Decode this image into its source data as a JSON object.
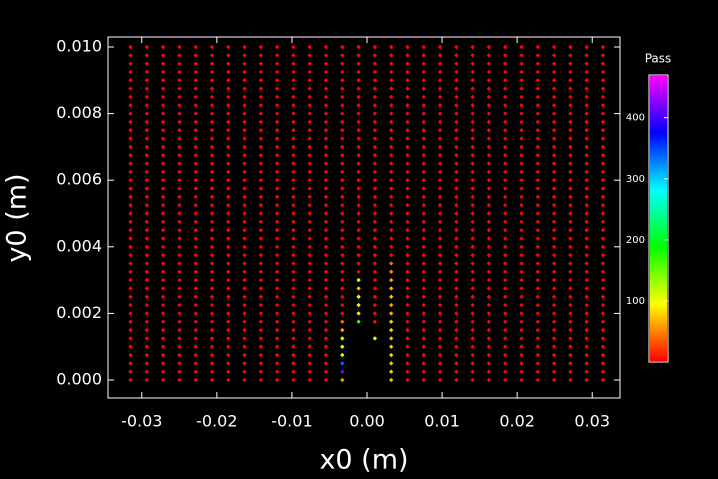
{
  "chart_data": {
    "type": "scatter",
    "x_label": "x0  (m)",
    "y_label": "y0  (m)",
    "colorbar_label": "Pass",
    "x": [
      -0.0315,
      -0.02933,
      -0.02716,
      -0.02499,
      -0.02282,
      -0.02065,
      -0.01848,
      -0.01631,
      -0.01414,
      -0.01197,
      -0.0098,
      -0.00763,
      -0.00546,
      -0.00329,
      -0.00112,
      0.00105,
      0.00322,
      0.00539,
      0.00756,
      0.00973,
      0.0119,
      0.01407,
      0.01624,
      0.01841,
      0.02058,
      0.02275,
      0.02492,
      0.02709,
      0.02926,
      0.03143
    ],
    "y": [
      0,
      0.00025,
      0.0005,
      0.00075,
      0.001,
      0.00125,
      0.0015,
      0.00175,
      0.002,
      0.00225,
      0.0025,
      0.00275,
      0.003,
      0.00325,
      0.0035,
      0.00375,
      0.004,
      0.00425,
      0.0045,
      0.00475,
      0.005,
      0.00525,
      0.0055,
      0.00575,
      0.006,
      0.00625,
      0.0065,
      0.00675,
      0.007,
      0.00725,
      0.0075,
      0.00775,
      0.008,
      0.00825,
      0.0085,
      0.00875,
      0.009,
      0.00925,
      0.0095,
      0.00975,
      0.01
    ],
    "values": [
      [
        1,
        1,
        1,
        1,
        1,
        1,
        1,
        1,
        1,
        1,
        1,
        1,
        1,
        60,
        null,
        null,
        70,
        1,
        1,
        1,
        1,
        1,
        1,
        1,
        1,
        1,
        1,
        1,
        1,
        1
      ],
      [
        1,
        1,
        1,
        1,
        1,
        1,
        1,
        1,
        1,
        1,
        1,
        1,
        1,
        420,
        null,
        null,
        75,
        1,
        1,
        1,
        1,
        1,
        1,
        1,
        1,
        1,
        1,
        1,
        1,
        1
      ],
      [
        1,
        1,
        1,
        1,
        1,
        1,
        1,
        1,
        1,
        1,
        1,
        1,
        1,
        340,
        null,
        null,
        70,
        1,
        1,
        1,
        1,
        1,
        1,
        1,
        1,
        1,
        1,
        1,
        1,
        1
      ],
      [
        1,
        1,
        1,
        1,
        1,
        1,
        1,
        1,
        1,
        1,
        1,
        1,
        1,
        90,
        null,
        null,
        80,
        1,
        1,
        1,
        1,
        1,
        1,
        1,
        1,
        1,
        1,
        1,
        1,
        1
      ],
      [
        1,
        1,
        1,
        1,
        1,
        1,
        1,
        1,
        1,
        1,
        1,
        1,
        1,
        95,
        null,
        null,
        75,
        1,
        1,
        1,
        1,
        1,
        1,
        1,
        1,
        1,
        1,
        1,
        1,
        1
      ],
      [
        1,
        1,
        1,
        1,
        1,
        1,
        1,
        1,
        1,
        1,
        1,
        1,
        1,
        100,
        null,
        100,
        70,
        1,
        1,
        1,
        1,
        1,
        1,
        1,
        1,
        1,
        1,
        1,
        1,
        1
      ],
      [
        1,
        1,
        1,
        1,
        1,
        1,
        1,
        1,
        1,
        1,
        1,
        1,
        1,
        60,
        null,
        null,
        80,
        1,
        1,
        1,
        1,
        1,
        1,
        1,
        1,
        1,
        1,
        1,
        1,
        1
      ],
      [
        1,
        1,
        1,
        1,
        1,
        1,
        1,
        1,
        1,
        1,
        1,
        1,
        1,
        40,
        170,
        5,
        75,
        1,
        1,
        1,
        1,
        1,
        1,
        1,
        1,
        1,
        1,
        1,
        1,
        1
      ],
      [
        1,
        1,
        1,
        1,
        1,
        1,
        1,
        1,
        1,
        1,
        1,
        1,
        1,
        1,
        90,
        1,
        65,
        1,
        1,
        1,
        1,
        1,
        1,
        1,
        1,
        1,
        1,
        1,
        1,
        1
      ],
      [
        1,
        1,
        1,
        1,
        1,
        1,
        1,
        1,
        1,
        1,
        1,
        1,
        1,
        1,
        100,
        1,
        60,
        1,
        1,
        1,
        1,
        1,
        1,
        1,
        1,
        1,
        1,
        1,
        1,
        1
      ],
      [
        1,
        1,
        1,
        1,
        1,
        1,
        1,
        1,
        1,
        1,
        1,
        1,
        1,
        1,
        95,
        1,
        70,
        1,
        1,
        1,
        1,
        1,
        1,
        1,
        1,
        1,
        1,
        1,
        1,
        1
      ],
      [
        1,
        1,
        1,
        1,
        1,
        1,
        1,
        1,
        1,
        1,
        1,
        1,
        1,
        1,
        70,
        1,
        65,
        1,
        1,
        1,
        1,
        1,
        1,
        1,
        1,
        1,
        1,
        1,
        1,
        1
      ],
      [
        1,
        1,
        1,
        1,
        1,
        1,
        1,
        1,
        1,
        1,
        1,
        1,
        1,
        1,
        90,
        1,
        60,
        1,
        1,
        1,
        1,
        1,
        1,
        1,
        1,
        1,
        1,
        1,
        1,
        1
      ],
      [
        1,
        1,
        1,
        1,
        1,
        1,
        1,
        1,
        1,
        1,
        1,
        1,
        1,
        1,
        1,
        1,
        50,
        1,
        1,
        1,
        1,
        1,
        1,
        1,
        1,
        1,
        1,
        1,
        1,
        1
      ],
      [
        1,
        1,
        1,
        1,
        1,
        1,
        1,
        1,
        1,
        1,
        1,
        1,
        1,
        1,
        1,
        1,
        40,
        1,
        1,
        1,
        1,
        1,
        1,
        1,
        1,
        1,
        1,
        1,
        1,
        1
      ],
      [
        1,
        1,
        1,
        1,
        1,
        1,
        1,
        1,
        1,
        1,
        1,
        1,
        1,
        1,
        1,
        1,
        1,
        1,
        1,
        1,
        1,
        1,
        1,
        1,
        1,
        1,
        1,
        1,
        1,
        1
      ],
      [
        1,
        1,
        1,
        1,
        1,
        1,
        1,
        1,
        1,
        1,
        1,
        1,
        1,
        1,
        1,
        1,
        1,
        1,
        1,
        1,
        1,
        1,
        1,
        1,
        1,
        1,
        1,
        1,
        1,
        1
      ],
      [
        1,
        1,
        1,
        1,
        1,
        1,
        1,
        1,
        1,
        1,
        1,
        1,
        1,
        1,
        1,
        1,
        1,
        1,
        1,
        1,
        1,
        1,
        1,
        1,
        1,
        1,
        1,
        1,
        1,
        1
      ],
      [
        1,
        1,
        1,
        1,
        1,
        1,
        1,
        1,
        1,
        1,
        1,
        1,
        1,
        1,
        1,
        1,
        1,
        1,
        1,
        1,
        1,
        1,
        1,
        1,
        1,
        1,
        1,
        1,
        1,
        1
      ],
      [
        1,
        1,
        1,
        1,
        1,
        1,
        1,
        1,
        1,
        1,
        1,
        1,
        1,
        1,
        1,
        1,
        1,
        1,
        1,
        1,
        1,
        1,
        1,
        1,
        1,
        1,
        1,
        1,
        1,
        1
      ],
      [
        1,
        1,
        1,
        1,
        1,
        1,
        1,
        1,
        1,
        1,
        1,
        1,
        1,
        1,
        1,
        1,
        1,
        1,
        1,
        1,
        1,
        1,
        1,
        1,
        1,
        1,
        1,
        1,
        1,
        1
      ],
      [
        1,
        1,
        1,
        1,
        1,
        1,
        1,
        1,
        1,
        1,
        1,
        1,
        1,
        1,
        1,
        1,
        1,
        1,
        1,
        1,
        1,
        1,
        1,
        1,
        1,
        1,
        1,
        1,
        1,
        1
      ],
      [
        1,
        1,
        1,
        1,
        1,
        1,
        1,
        1,
        1,
        1,
        1,
        1,
        1,
        1,
        1,
        1,
        1,
        1,
        1,
        1,
        1,
        1,
        1,
        1,
        1,
        1,
        1,
        1,
        1,
        1
      ],
      [
        1,
        1,
        1,
        1,
        1,
        1,
        1,
        1,
        1,
        1,
        1,
        1,
        1,
        1,
        1,
        1,
        1,
        1,
        1,
        1,
        1,
        1,
        1,
        1,
        1,
        1,
        1,
        1,
        1,
        1
      ],
      [
        1,
        1,
        1,
        1,
        1,
        1,
        1,
        1,
        1,
        1,
        1,
        1,
        1,
        1,
        1,
        1,
        1,
        1,
        1,
        1,
        1,
        1,
        1,
        1,
        1,
        1,
        1,
        1,
        1,
        1
      ],
      [
        1,
        1,
        1,
        1,
        1,
        1,
        1,
        1,
        1,
        1,
        1,
        1,
        1,
        1,
        1,
        1,
        1,
        1,
        1,
        1,
        1,
        1,
        1,
        1,
        1,
        1,
        1,
        1,
        1,
        1
      ],
      [
        1,
        1,
        1,
        1,
        1,
        1,
        1,
        1,
        1,
        1,
        1,
        1,
        1,
        1,
        1,
        1,
        1,
        1,
        1,
        1,
        1,
        1,
        1,
        1,
        1,
        1,
        1,
        1,
        1,
        1
      ],
      [
        1,
        1,
        1,
        1,
        1,
        1,
        1,
        1,
        1,
        1,
        1,
        1,
        1,
        1,
        1,
        1,
        1,
        1,
        1,
        1,
        1,
        1,
        1,
        1,
        1,
        1,
        1,
        1,
        1,
        1
      ],
      [
        1,
        1,
        1,
        1,
        1,
        1,
        1,
        1,
        1,
        1,
        1,
        1,
        1,
        1,
        1,
        1,
        1,
        1,
        1,
        1,
        1,
        1,
        1,
        1,
        1,
        1,
        1,
        1,
        1,
        1
      ],
      [
        1,
        1,
        1,
        1,
        1,
        1,
        1,
        1,
        1,
        1,
        1,
        1,
        1,
        1,
        1,
        1,
        1,
        1,
        1,
        1,
        1,
        1,
        1,
        1,
        1,
        1,
        1,
        1,
        1,
        1
      ],
      [
        1,
        1,
        1,
        1,
        1,
        1,
        1,
        1,
        1,
        1,
        1,
        1,
        1,
        1,
        1,
        1,
        1,
        1,
        1,
        1,
        1,
        1,
        1,
        1,
        1,
        1,
        1,
        1,
        1,
        1
      ],
      [
        1,
        1,
        1,
        1,
        1,
        1,
        1,
        1,
        1,
        1,
        1,
        1,
        1,
        1,
        1,
        1,
        1,
        1,
        1,
        1,
        1,
        1,
        1,
        1,
        1,
        1,
        1,
        1,
        1,
        1
      ],
      [
        1,
        1,
        1,
        1,
        1,
        1,
        1,
        1,
        1,
        1,
        1,
        1,
        1,
        1,
        1,
        1,
        1,
        1,
        1,
        1,
        1,
        1,
        1,
        1,
        1,
        1,
        1,
        1,
        1,
        1
      ],
      [
        1,
        1,
        1,
        1,
        1,
        1,
        1,
        1,
        1,
        1,
        1,
        1,
        1,
        1,
        1,
        1,
        1,
        1,
        1,
        1,
        1,
        1,
        1,
        1,
        1,
        1,
        1,
        1,
        1,
        1
      ],
      [
        1,
        1,
        1,
        1,
        1,
        1,
        1,
        1,
        1,
        1,
        1,
        1,
        1,
        1,
        1,
        1,
        1,
        1,
        1,
        1,
        1,
        1,
        1,
        1,
        1,
        1,
        1,
        1,
        1,
        1
      ],
      [
        1,
        1,
        1,
        1,
        1,
        1,
        1,
        1,
        1,
        1,
        1,
        1,
        1,
        1,
        1,
        1,
        1,
        1,
        1,
        1,
        1,
        1,
        1,
        1,
        1,
        1,
        1,
        1,
        1,
        1
      ],
      [
        1,
        1,
        1,
        1,
        1,
        1,
        1,
        1,
        1,
        1,
        1,
        1,
        1,
        1,
        1,
        1,
        1,
        1,
        1,
        1,
        1,
        1,
        1,
        1,
        1,
        1,
        1,
        1,
        1,
        1
      ],
      [
        1,
        1,
        1,
        1,
        1,
        1,
        1,
        1,
        1,
        1,
        1,
        1,
        1,
        1,
        1,
        1,
        1,
        1,
        1,
        1,
        1,
        1,
        1,
        1,
        1,
        1,
        1,
        1,
        1,
        1
      ],
      [
        1,
        1,
        1,
        1,
        1,
        1,
        1,
        1,
        1,
        1,
        1,
        1,
        1,
        1,
        1,
        1,
        1,
        1,
        1,
        1,
        1,
        1,
        1,
        1,
        1,
        1,
        1,
        1,
        1,
        1
      ],
      [
        1,
        1,
        1,
        1,
        1,
        1,
        1,
        1,
        1,
        1,
        1,
        1,
        1,
        1,
        1,
        1,
        1,
        1,
        1,
        1,
        1,
        1,
        1,
        1,
        1,
        1,
        1,
        1,
        1,
        1
      ],
      [
        1,
        1,
        1,
        1,
        1,
        1,
        1,
        1,
        1,
        1,
        1,
        1,
        1,
        1,
        1,
        1,
        1,
        1,
        1,
        1,
        1,
        1,
        1,
        1,
        1,
        1,
        1,
        1,
        1,
        1
      ]
    ],
    "xlim": [
      -0.0345,
      0.0337
    ],
    "ylim": [
      -0.00054,
      0.0103
    ],
    "xticks": [
      -0.03,
      -0.02,
      -0.01,
      {
        "value": 0,
        "label": "0.00"
      },
      0.01,
      0.02,
      0.03
    ],
    "yticks": [
      {
        "value": 0,
        "label": "0.000"
      },
      {
        "value": 0.002,
        "label": "0.002"
      },
      {
        "value": 0.004,
        "label": "0.004"
      },
      {
        "value": 0.006,
        "label": "0.006"
      },
      {
        "value": 0.008,
        "label": "0.008"
      },
      {
        "value": 0.01,
        "label": "0.010"
      }
    ],
    "clim": [
      0,
      470
    ],
    "cticks": [
      100,
      200,
      300,
      400
    ],
    "colormap": "hsv-red-to-magenta"
  }
}
